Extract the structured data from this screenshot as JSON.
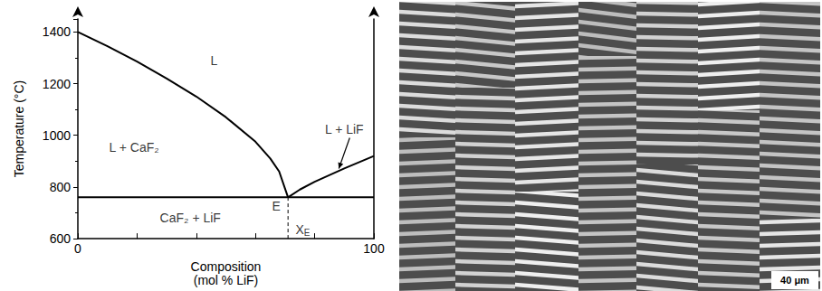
{
  "chart_data": {
    "type": "line",
    "x_label": "Composition\n(mol % LiF)",
    "y_label": "Temperature (°C)",
    "xlim": [
      0,
      100
    ],
    "xticks": [
      0,
      100
    ],
    "ylim": [
      600,
      1450
    ],
    "yticks": [
      600,
      800,
      1000,
      1200,
      1400
    ],
    "grid": false,
    "series": [
      {
        "x": [
          0,
          10,
          20,
          30,
          40,
          50,
          60,
          65,
          68,
          71
        ],
        "values": [
          1400,
          1345,
          1285,
          1220,
          1150,
          1070,
          975,
          910,
          860,
          760
        ],
        "color": "#000000",
        "line_style": "solid"
      },
      {
        "x": [
          71,
          75,
          80,
          90,
          100
        ],
        "values": [
          760,
          790,
          820,
          872,
          920
        ],
        "color": "#000000",
        "line_style": "solid"
      },
      {
        "x": [
          0,
          100
        ],
        "values": [
          760,
          760
        ],
        "color": "#000000",
        "line_style": "solid"
      },
      {
        "x": [
          71,
          71
        ],
        "values": [
          600,
          760
        ],
        "color": "#000000",
        "line_style": "dashed"
      }
    ],
    "annotations": [
      {
        "text": "L",
        "x": 46,
        "y": 1290
      },
      {
        "text": "L + CaF₂",
        "x": 19,
        "y": 955
      },
      {
        "text": "L + LiF",
        "x": 90,
        "y": 1025
      },
      {
        "text": "CaF₂ + LiF",
        "x": 38,
        "y": 680
      },
      {
        "text": "E",
        "x": 67,
        "y": 725
      },
      {
        "text": "X",
        "subscript": "E",
        "x": 76,
        "y": 635
      }
    ]
  },
  "micrograph": {
    "scale_bar": "40 μm"
  }
}
